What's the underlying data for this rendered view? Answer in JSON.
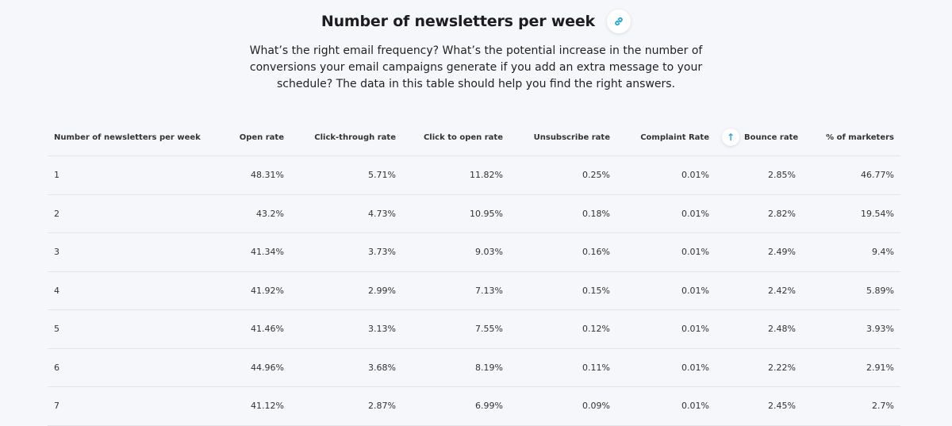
{
  "header": {
    "title": "Number of newsletters per week",
    "link_icon": "link-icon",
    "accent": "#2aa7c9",
    "description": "What’s the right email frequency? What’s the potential increase in the number of conversions your email campaigns generate if you add an extra message to your schedule? The data in this table should help you find the right answers."
  },
  "table": {
    "columns": [
      "Number of newsletters per week",
      "Open rate",
      "Click-through rate",
      "Click to open rate",
      "Unsubscribe rate",
      "Complaint Rate",
      "Bounce rate",
      "% of marketers"
    ],
    "sort_icon": "arrow-up-icon",
    "rows": [
      [
        "1",
        "48.31%",
        "5.71%",
        "11.82%",
        "0.25%",
        "0.01%",
        "2.85%",
        "46.77%"
      ],
      [
        "2",
        "43.2%",
        "4.73%",
        "10.95%",
        "0.18%",
        "0.01%",
        "2.82%",
        "19.54%"
      ],
      [
        "3",
        "41.34%",
        "3.73%",
        "9.03%",
        "0.16%",
        "0.01%",
        "2.49%",
        "9.4%"
      ],
      [
        "4",
        "41.92%",
        "2.99%",
        "7.13%",
        "0.15%",
        "0.01%",
        "2.42%",
        "5.89%"
      ],
      [
        "5",
        "41.46%",
        "3.13%",
        "7.55%",
        "0.12%",
        "0.01%",
        "2.48%",
        "3.93%"
      ],
      [
        "6",
        "44.96%",
        "3.68%",
        "8.19%",
        "0.11%",
        "0.01%",
        "2.22%",
        "2.91%"
      ],
      [
        "7",
        "41.12%",
        "2.87%",
        "6.99%",
        "0.09%",
        "0.01%",
        "2.45%",
        "2.7%"
      ]
    ]
  }
}
